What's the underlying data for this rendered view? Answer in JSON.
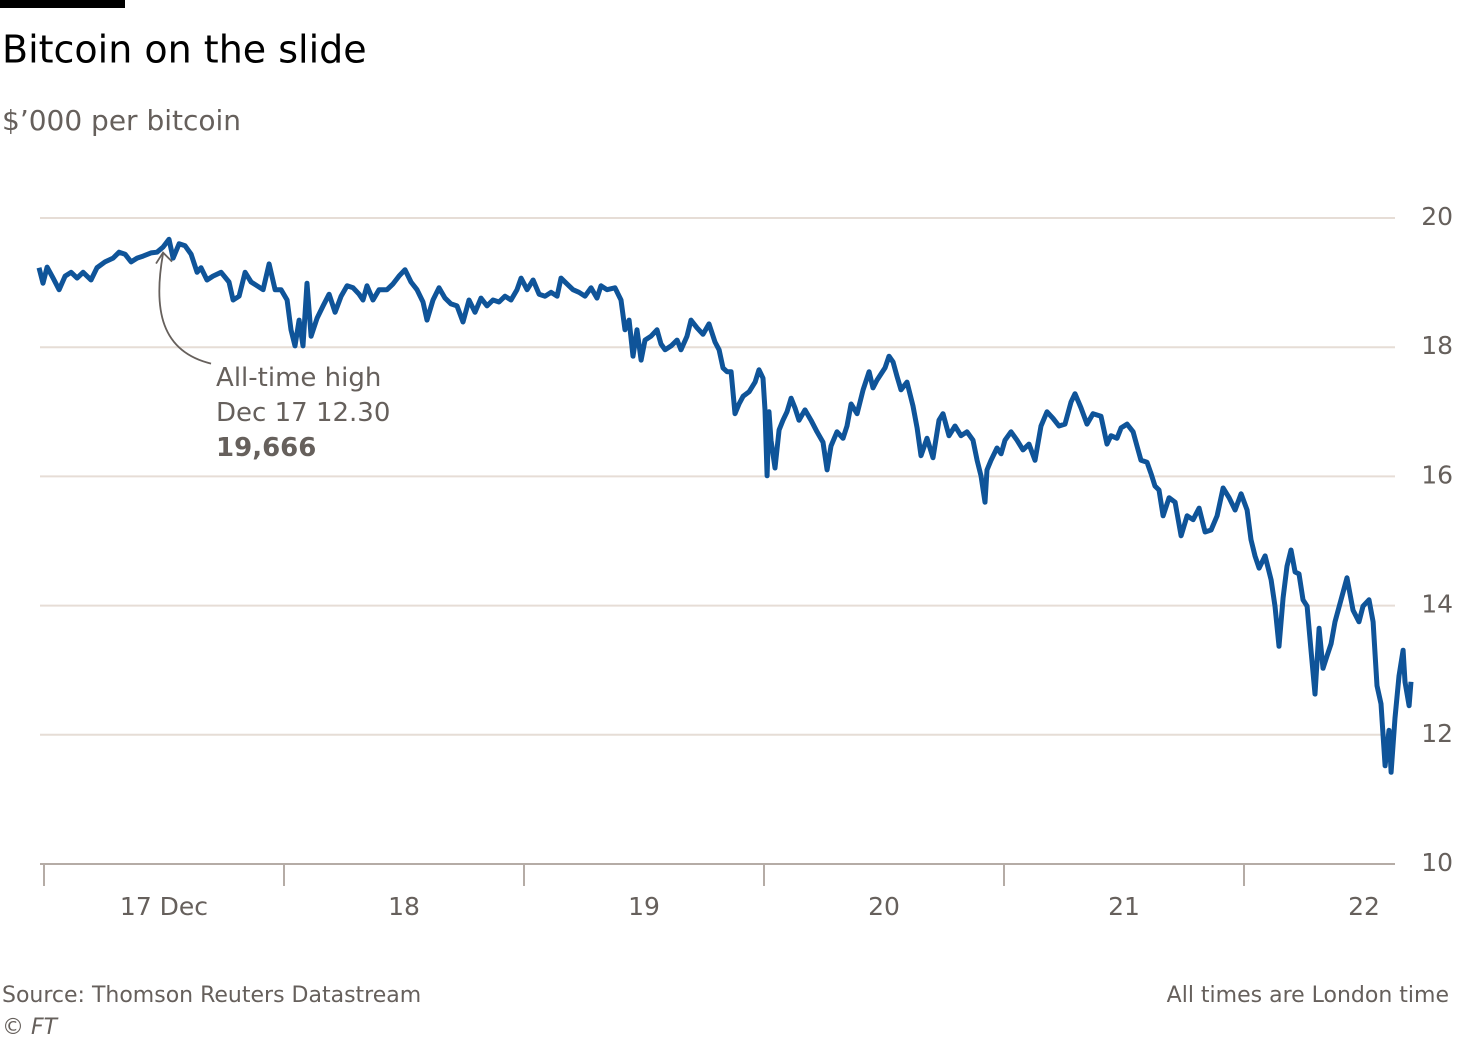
{
  "chart_data": {
    "type": "line",
    "title": "Bitcoin on the slide",
    "subtitle": "$’000 per bitcoin",
    "source": "Source: Thomson Reuters Datastream",
    "credit": "© FT",
    "note": "All times are London time",
    "color": "#0f5499",
    "grid": true,
    "xlim": [
      16.975,
      22.7
    ],
    "ylim": [
      10,
      20
    ],
    "yticks": [
      10,
      12,
      14,
      16,
      18,
      20
    ],
    "xticks": [
      {
        "value": 17,
        "label": "17 Dec"
      },
      {
        "value": 18,
        "label": "18"
      },
      {
        "value": 19,
        "label": "19"
      },
      {
        "value": 20,
        "label": "20"
      },
      {
        "value": 21,
        "label": "21"
      },
      {
        "value": 22,
        "label": "22"
      }
    ],
    "annotations": [
      {
        "text": [
          "All-time high",
          "Dec 17 12.30"
        ],
        "x": 17.521,
        "y": 19.666,
        "y_label": "19,666"
      }
    ],
    "x": [
      16.979,
      16.996,
      17.013,
      17.038,
      17.063,
      17.088,
      17.113,
      17.138,
      17.163,
      17.196,
      17.221,
      17.254,
      17.288,
      17.313,
      17.338,
      17.363,
      17.388,
      17.413,
      17.446,
      17.471,
      17.496,
      17.521,
      17.538,
      17.563,
      17.588,
      17.613,
      17.638,
      17.654,
      17.679,
      17.704,
      17.738,
      17.771,
      17.788,
      17.813,
      17.838,
      17.863,
      17.888,
      17.913,
      17.938,
      17.963,
      17.988,
      18.013,
      18.029,
      18.046,
      18.063,
      18.079,
      18.096,
      18.113,
      18.138,
      18.163,
      18.188,
      18.213,
      18.238,
      18.263,
      18.288,
      18.313,
      18.329,
      18.346,
      18.371,
      18.396,
      18.429,
      18.454,
      18.479,
      18.504,
      18.529,
      18.554,
      18.579,
      18.596,
      18.621,
      18.646,
      18.671,
      18.696,
      18.721,
      18.746,
      18.771,
      18.796,
      18.821,
      18.846,
      18.871,
      18.896,
      18.921,
      18.946,
      18.971,
      18.988,
      19.013,
      19.038,
      19.063,
      19.088,
      19.113,
      19.138,
      19.154,
      19.179,
      19.204,
      19.229,
      19.254,
      19.279,
      19.304,
      19.321,
      19.346,
      19.379,
      19.404,
      19.421,
      19.438,
      19.454,
      19.471,
      19.488,
      19.504,
      19.529,
      19.554,
      19.571,
      19.588,
      19.613,
      19.638,
      19.654,
      19.679,
      19.696,
      19.721,
      19.746,
      19.771,
      19.796,
      19.813,
      19.829,
      19.846,
      19.863,
      19.879,
      19.896,
      19.913,
      19.938,
      19.963,
      19.979,
      19.996,
      20.004,
      20.013,
      20.021,
      20.029,
      20.046,
      20.063,
      20.079,
      20.096,
      20.113,
      20.129,
      20.146,
      20.171,
      20.196,
      20.221,
      20.246,
      20.263,
      20.279,
      20.304,
      20.329,
      20.346,
      20.363,
      20.388,
      20.413,
      20.438,
      20.454,
      20.471,
      20.504,
      20.521,
      20.538,
      20.554,
      20.571,
      20.596,
      20.621,
      20.638,
      20.654,
      20.679,
      20.704,
      20.729,
      20.746,
      20.771,
      20.796,
      20.821,
      20.846,
      20.871,
      20.888,
      20.904,
      20.921,
      20.929,
      20.946,
      20.971,
      20.988,
      21.004,
      21.029,
      21.054,
      21.079,
      21.104,
      21.129,
      21.154,
      21.179,
      21.204,
      21.229,
      21.254,
      21.279,
      21.296,
      21.321,
      21.346,
      21.371,
      21.404,
      21.429,
      21.446,
      21.471,
      21.488,
      21.513,
      21.538,
      21.554,
      21.571,
      21.596,
      21.613,
      21.629,
      21.646,
      21.663,
      21.688,
      21.713,
      21.738,
      21.763,
      21.788,
      21.813,
      21.838,
      21.863,
      21.888,
      21.913,
      21.938,
      21.963,
      21.988,
      22.013,
      22.029,
      22.046,
      22.063,
      22.088,
      22.113,
      22.129,
      22.146,
      22.163,
      22.179,
      22.196,
      22.213,
      22.229,
      22.246,
      22.263,
      22.279,
      22.296,
      22.313,
      22.329,
      22.346,
      22.363,
      22.379,
      22.404,
      22.429,
      22.454,
      22.479,
      22.496,
      22.521,
      22.538,
      22.554,
      22.571,
      22.588,
      22.604,
      22.613,
      22.629,
      22.646,
      22.663,
      22.671,
      22.688,
      22.696
    ],
    "values": [
      19.23,
      18.99,
      19.24,
      19.07,
      18.89,
      19.1,
      19.16,
      19.07,
      19.16,
      19.04,
      19.23,
      19.32,
      19.38,
      19.47,
      19.44,
      19.32,
      19.38,
      19.41,
      19.46,
      19.47,
      19.55,
      19.67,
      19.38,
      19.6,
      19.57,
      19.44,
      19.16,
      19.23,
      19.04,
      19.1,
      19.16,
      19.01,
      18.73,
      18.79,
      19.16,
      19.01,
      18.95,
      18.89,
      19.29,
      18.89,
      18.89,
      18.73,
      18.27,
      18.02,
      18.42,
      18.02,
      18.99,
      18.17,
      18.45,
      18.64,
      18.82,
      18.54,
      18.79,
      18.95,
      18.92,
      18.82,
      18.73,
      18.95,
      18.73,
      18.89,
      18.89,
      18.98,
      19.1,
      19.2,
      19.01,
      18.89,
      18.7,
      18.42,
      18.73,
      18.92,
      18.76,
      18.67,
      18.64,
      18.39,
      18.73,
      18.54,
      18.76,
      18.64,
      18.73,
      18.7,
      18.79,
      18.73,
      18.89,
      19.07,
      18.89,
      19.04,
      18.82,
      18.79,
      18.85,
      18.79,
      19.07,
      18.98,
      18.89,
      18.85,
      18.79,
      18.92,
      18.76,
      18.95,
      18.89,
      18.92,
      18.73,
      18.27,
      18.42,
      17.86,
      18.27,
      17.8,
      18.11,
      18.17,
      18.27,
      18.05,
      17.96,
      18.02,
      18.11,
      17.96,
      18.17,
      18.42,
      18.3,
      18.2,
      18.36,
      18.08,
      17.96,
      17.68,
      17.62,
      17.62,
      16.97,
      17.12,
      17.24,
      17.31,
      17.46,
      17.65,
      17.52,
      17.03,
      16.01,
      17.0,
      16.56,
      16.13,
      16.72,
      16.87,
      17.0,
      17.21,
      17.06,
      16.87,
      17.03,
      16.87,
      16.69,
      16.53,
      16.1,
      16.47,
      16.69,
      16.59,
      16.78,
      17.12,
      16.97,
      17.34,
      17.62,
      17.37,
      17.49,
      17.68,
      17.86,
      17.77,
      17.55,
      17.34,
      17.46,
      17.09,
      16.75,
      16.32,
      16.59,
      16.29,
      16.87,
      16.97,
      16.63,
      16.78,
      16.63,
      16.69,
      16.56,
      16.25,
      16.01,
      15.6,
      16.1,
      16.25,
      16.44,
      16.35,
      16.56,
      16.69,
      16.56,
      16.41,
      16.5,
      16.25,
      16.78,
      17.0,
      16.9,
      16.78,
      16.81,
      17.15,
      17.28,
      17.06,
      16.81,
      16.97,
      16.93,
      16.5,
      16.63,
      16.59,
      16.75,
      16.81,
      16.69,
      16.47,
      16.25,
      16.22,
      16.04,
      15.85,
      15.79,
      15.39,
      15.67,
      15.6,
      15.08,
      15.39,
      15.33,
      15.51,
      15.14,
      15.17,
      15.39,
      15.82,
      15.67,
      15.48,
      15.73,
      15.48,
      15.02,
      14.77,
      14.58,
      14.77,
      14.4,
      13.99,
      13.37,
      14.12,
      14.61,
      14.86,
      14.52,
      14.49,
      14.09,
      13.99,
      13.31,
      12.63,
      13.65,
      13.03,
      13.22,
      13.41,
      13.75,
      14.09,
      14.43,
      13.93,
      13.75,
      13.99,
      14.09,
      13.75,
      12.76,
      12.48,
      11.52,
      12.07,
      11.42,
      12.26,
      12.91,
      13.31,
      12.82,
      12.45,
      12.82
    ]
  }
}
